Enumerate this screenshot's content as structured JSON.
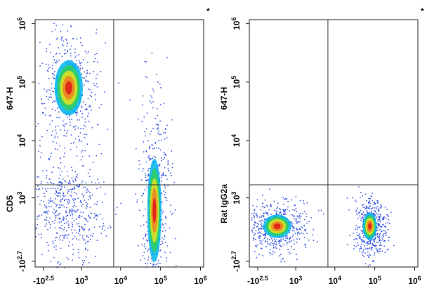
{
  "chart_data": [
    {
      "type": "density",
      "scale": "biexponential",
      "marker": "*",
      "ylabel": [
        "CD5",
        "647-H"
      ],
      "xlim": [
        -630,
        1200000
      ],
      "ylim": [
        -665,
        1170000
      ],
      "xticks": [
        {
          "value": -316,
          "label": "-10",
          "power": "2.5"
        },
        {
          "value": 1000,
          "label": "10",
          "power": "3"
        },
        {
          "value": 10000,
          "label": "10",
          "power": "4"
        },
        {
          "value": 100000,
          "label": "10",
          "power": "5"
        },
        {
          "value": 1000000,
          "label": "10",
          "power": "6"
        }
      ],
      "yticks": [
        {
          "value": -501,
          "label": "-10",
          "power": "2.7"
        },
        {
          "value": 1000,
          "label": "10",
          "power": "3"
        },
        {
          "value": 10000,
          "label": "10",
          "power": "4"
        },
        {
          "value": 100000,
          "label": "10",
          "power": "5"
        },
        {
          "value": 1000000,
          "label": "10",
          "power": "6"
        }
      ],
      "gate": {
        "x": 6700,
        "y": 1730
      },
      "clusters": [
        {
          "x": 400,
          "y": 80000,
          "sd_decades": [
            0.3,
            0.4
          ],
          "peak_color": "red"
        },
        {
          "x": 70000,
          "y": 560,
          "sd_decades": [
            0.15,
            0.75
          ],
          "peak_color": "red"
        },
        {
          "x": 350,
          "y": 560,
          "sd_decades": [
            0.35,
            0.35
          ],
          "peak_color": "blue"
        }
      ]
    },
    {
      "type": "density",
      "scale": "biexponential",
      "marker": "*",
      "ylabel": [
        "Rat IgG2a",
        "647-H"
      ],
      "xlim": [
        -630,
        1200000
      ],
      "ylim": [
        -665,
        1170000
      ],
      "xticks": [
        {
          "value": -316,
          "label": "-10",
          "power": "2.5"
        },
        {
          "value": 1000,
          "label": "10",
          "power": "3"
        },
        {
          "value": 10000,
          "label": "10",
          "power": "4"
        },
        {
          "value": 100000,
          "label": "10",
          "power": "5"
        },
        {
          "value": 1000000,
          "label": "10",
          "power": "6"
        }
      ],
      "yticks": [
        {
          "value": -501,
          "label": "-10",
          "power": "2.7"
        },
        {
          "value": 1000,
          "label": "10",
          "power": "3"
        },
        {
          "value": 10000,
          "label": "10",
          "power": "4"
        },
        {
          "value": 100000,
          "label": "10",
          "power": "5"
        },
        {
          "value": 1000000,
          "label": "10",
          "power": "6"
        }
      ],
      "gate": {
        "x": 6700,
        "y": 1730
      },
      "clusters": [
        {
          "x": 220,
          "y": 195,
          "sd_decades": [
            0.3,
            0.17
          ],
          "peak_color": "red"
        },
        {
          "x": 75000,
          "y": 195,
          "sd_decades": [
            0.15,
            0.2
          ],
          "peak_color": "red"
        }
      ]
    }
  ]
}
